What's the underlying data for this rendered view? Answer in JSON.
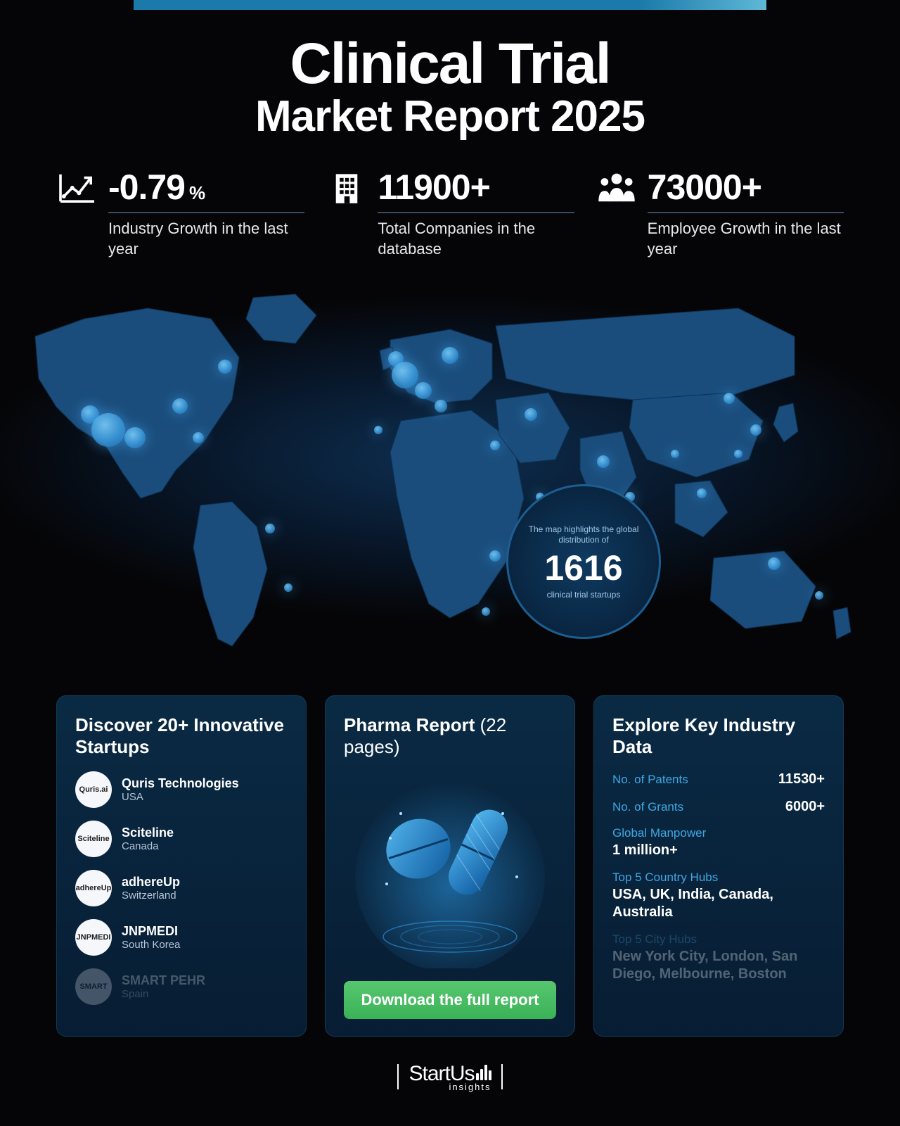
{
  "colors": {
    "background": "#050507",
    "card_bg_top": "#0a2a44",
    "card_bg_bottom": "#071d33",
    "card_border": "#123a58",
    "accent_cyan": "#3fa7e3",
    "map_land": "#1a4d7c",
    "map_border": "#0a3254",
    "hotspot": "#4fa8e0",
    "button_top": "#57c76f",
    "button_bottom": "#3bb258",
    "topbar": "#1b7aaa",
    "stat_rule": "#3a4d63",
    "text_muted": "#b5c5d6"
  },
  "title": {
    "line1": "Clinical Trial",
    "line2": "Market Report 2025"
  },
  "stats": [
    {
      "icon": "chart-up",
      "value": "-0.79",
      "unit": "%",
      "label": "Industry Growth in the last year"
    },
    {
      "icon": "building",
      "value": "11900+",
      "unit": "",
      "label": "Total Companies in the database"
    },
    {
      "icon": "people",
      "value": "73000+",
      "unit": "",
      "label": "Employee Growth in the last year"
    }
  ],
  "map_badge": {
    "top": "The map highlights the global distribution of",
    "number": "1616",
    "bottom": "clinical trial startups"
  },
  "map_hotspots": [
    {
      "left_pct": 10,
      "top_pct": 34,
      "size": 26
    },
    {
      "left_pct": 12,
      "top_pct": 38,
      "size": 48
    },
    {
      "left_pct": 15,
      "top_pct": 40,
      "size": 30
    },
    {
      "left_pct": 20,
      "top_pct": 32,
      "size": 22
    },
    {
      "left_pct": 22,
      "top_pct": 40,
      "size": 16
    },
    {
      "left_pct": 25,
      "top_pct": 22,
      "size": 20
    },
    {
      "left_pct": 30,
      "top_pct": 63,
      "size": 14
    },
    {
      "left_pct": 32,
      "top_pct": 78,
      "size": 12
    },
    {
      "left_pct": 44,
      "top_pct": 20,
      "size": 22
    },
    {
      "left_pct": 45,
      "top_pct": 24,
      "size": 38
    },
    {
      "left_pct": 47,
      "top_pct": 28,
      "size": 24
    },
    {
      "left_pct": 50,
      "top_pct": 19,
      "size": 24
    },
    {
      "left_pct": 49,
      "top_pct": 32,
      "size": 18
    },
    {
      "left_pct": 42,
      "top_pct": 38,
      "size": 12
    },
    {
      "left_pct": 55,
      "top_pct": 42,
      "size": 14
    },
    {
      "left_pct": 59,
      "top_pct": 34,
      "size": 18
    },
    {
      "left_pct": 60,
      "top_pct": 55,
      "size": 12
    },
    {
      "left_pct": 55,
      "top_pct": 70,
      "size": 16
    },
    {
      "left_pct": 54,
      "top_pct": 84,
      "size": 12
    },
    {
      "left_pct": 67,
      "top_pct": 46,
      "size": 18
    },
    {
      "left_pct": 70,
      "top_pct": 55,
      "size": 14
    },
    {
      "left_pct": 75,
      "top_pct": 44,
      "size": 12
    },
    {
      "left_pct": 78,
      "top_pct": 54,
      "size": 14
    },
    {
      "left_pct": 81,
      "top_pct": 30,
      "size": 16
    },
    {
      "left_pct": 84,
      "top_pct": 38,
      "size": 16
    },
    {
      "left_pct": 82,
      "top_pct": 44,
      "size": 12
    },
    {
      "left_pct": 86,
      "top_pct": 72,
      "size": 18
    },
    {
      "left_pct": 91,
      "top_pct": 80,
      "size": 12
    }
  ],
  "card_startups": {
    "title": "Discover 20+ Innovative Startups",
    "items": [
      {
        "logo_text": "Quris.ai",
        "name": "Quris Technologies",
        "country": "USA",
        "faded": false
      },
      {
        "logo_text": "Sciteline",
        "name": "Sciteline",
        "country": "Canada",
        "faded": false
      },
      {
        "logo_text": "adhereUp",
        "name": "adhereUp",
        "country": "Switzerland",
        "faded": false
      },
      {
        "logo_text": "JNPMEDI",
        "name": "JNPMEDI",
        "country": "South Korea",
        "faded": false
      },
      {
        "logo_text": "SMART",
        "name": "SMART PEHR",
        "country": "Spain",
        "faded": true
      }
    ]
  },
  "card_pharma": {
    "title_main": "Pharma Report",
    "title_sub": "(22 pages)",
    "button_label": "Download the full report"
  },
  "card_industry": {
    "title": "Explore Key Industry Data",
    "rows_inline": [
      {
        "label": "No. of Patents",
        "value": "11530+"
      },
      {
        "label": "No. of Grants",
        "value": "6000+"
      }
    ],
    "rows_block": [
      {
        "label": "Global Manpower",
        "value": "1 million+",
        "faded": false
      },
      {
        "label": "Top 5 Country Hubs",
        "value": "USA, UK, India, Canada, Australia",
        "faded": false
      },
      {
        "label": "Top 5 City Hubs",
        "value": "New York City, London, San Diego, Melbourne, Boston",
        "faded": true
      }
    ]
  },
  "footer": {
    "brand": "StartUs",
    "sub": "insights"
  }
}
